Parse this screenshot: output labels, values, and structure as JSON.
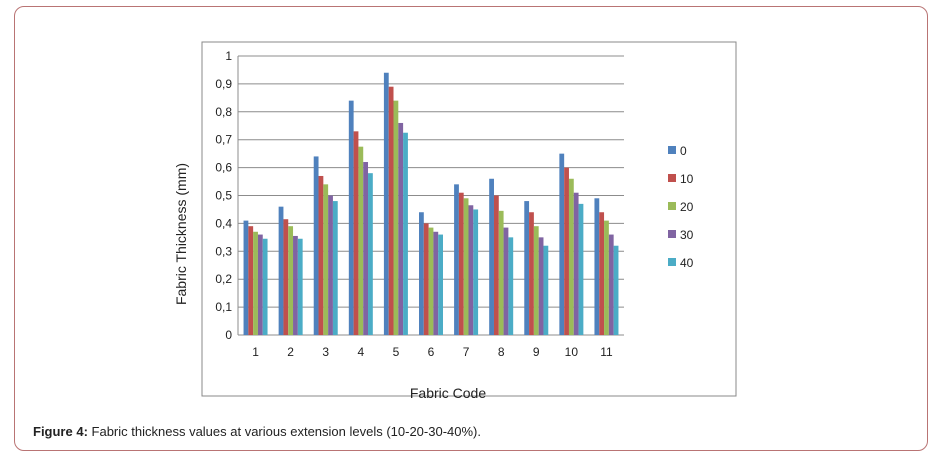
{
  "caption": {
    "label": "Figure 4:",
    "text": "Fabric thickness values at various extension levels (10-20-30-40%)."
  },
  "chart_data": {
    "type": "bar",
    "xlabel": "Fabric Code",
    "ylabel": "Fabric Thickness   (mm)",
    "categories": [
      "1",
      "2",
      "3",
      "4",
      "5",
      "6",
      "7",
      "8",
      "9",
      "10",
      "11"
    ],
    "ylim": [
      0,
      1
    ],
    "yticks": [
      "0",
      "0,1",
      "0,2",
      "0,3",
      "0,4",
      "0,5",
      "0,6",
      "0,7",
      "0,8",
      "0,9",
      "1"
    ],
    "grid": true,
    "legend_position": "right",
    "series": [
      {
        "name": "0",
        "color": "#4f81bd",
        "values": [
          0.41,
          0.46,
          0.64,
          0.84,
          0.94,
          0.44,
          0.54,
          0.56,
          0.48,
          0.65,
          0.49
        ]
      },
      {
        "name": "10",
        "color": "#c0504d",
        "values": [
          0.39,
          0.415,
          0.57,
          0.73,
          0.89,
          0.4,
          0.51,
          0.5,
          0.44,
          0.6,
          0.44
        ]
      },
      {
        "name": "20",
        "color": "#9bbb59",
        "values": [
          0.37,
          0.39,
          0.54,
          0.675,
          0.84,
          0.385,
          0.49,
          0.445,
          0.39,
          0.56,
          0.41
        ]
      },
      {
        "name": "30",
        "color": "#8064a2",
        "values": [
          0.36,
          0.355,
          0.5,
          0.62,
          0.76,
          0.37,
          0.465,
          0.385,
          0.35,
          0.51,
          0.36
        ]
      },
      {
        "name": "40",
        "color": "#4bacc6",
        "values": [
          0.345,
          0.345,
          0.48,
          0.58,
          0.725,
          0.36,
          0.45,
          0.35,
          0.32,
          0.47,
          0.32
        ]
      }
    ]
  }
}
